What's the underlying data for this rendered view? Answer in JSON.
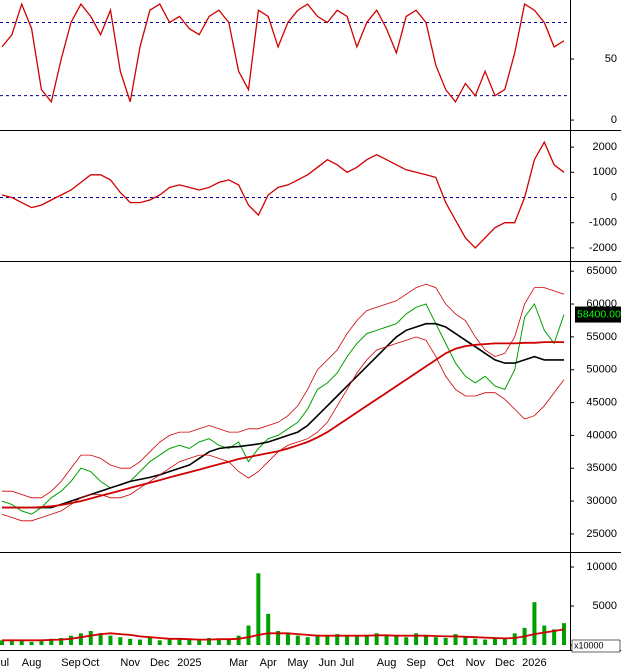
{
  "chart_data": [
    {
      "type": "line",
      "series": [
        {
          "color": "#d00000",
          "values": [
            60,
            70,
            95,
            75,
            25,
            15,
            50,
            80,
            95,
            85,
            70,
            90,
            40,
            15,
            60,
            90,
            95,
            80,
            85,
            75,
            70,
            85,
            90,
            80,
            40,
            25,
            90,
            85,
            60,
            80,
            90,
            95,
            85,
            80,
            90,
            85,
            60,
            80,
            90,
            75,
            55,
            85,
            90,
            80,
            45,
            25,
            15,
            30,
            20,
            40,
            20,
            25,
            55,
            95,
            90,
            80,
            60,
            65
          ]
        }
      ],
      "levels": [
        80,
        20
      ],
      "level_color": "#0000a0",
      "ylim": [
        -6.5,
        98.4
      ],
      "yticks": [
        0,
        50
      ]
    },
    {
      "type": "line",
      "series": [
        {
          "color": "#d00000",
          "values": [
            100,
            0,
            -200,
            -400,
            -300,
            -100,
            100,
            300,
            600,
            900,
            900,
            700,
            200,
            -200,
            -200,
            -100,
            100,
            400,
            500,
            400,
            300,
            400,
            600,
            700,
            500,
            -300,
            -700,
            100,
            400,
            500,
            700,
            900,
            1200,
            1500,
            1300,
            1000,
            1200,
            1500,
            1700,
            1500,
            1300,
            1100,
            1000,
            900,
            800,
            -200,
            -900,
            -1600,
            -2000,
            -1600,
            -1200,
            -1000,
            -1000,
            0,
            1500,
            2200,
            1300,
            1000
          ]
        }
      ],
      "levels": [
        0
      ],
      "level_color": "#0000a0",
      "ylim": [
        -2480,
        2600
      ],
      "yticks": [
        -2000,
        -1000,
        0,
        1000,
        2000
      ]
    },
    {
      "type": "line",
      "series": [
        {
          "color": "#00a000",
          "values": [
            30000,
            29500,
            28500,
            28000,
            29000,
            30500,
            31500,
            33000,
            35000,
            34500,
            33000,
            32000,
            32500,
            33000,
            34500,
            36000,
            37000,
            38000,
            38500,
            38000,
            39000,
            39500,
            38500,
            38000,
            39000,
            36000,
            38000,
            39500,
            40000,
            41000,
            42000,
            44000,
            47000,
            48000,
            49500,
            52000,
            54000,
            55500,
            56000,
            56500,
            57000,
            58500,
            59500,
            60000,
            57000,
            54000,
            51000,
            49000,
            48000,
            49000,
            47500,
            47000,
            50000,
            58000,
            60000,
            56000,
            54000,
            58400
          ]
        },
        {
          "color": "#000000",
          "values": [
            29000,
            29000,
            29000,
            29000,
            29000,
            29000,
            29500,
            30000,
            30500,
            31000,
            31500,
            32000,
            32500,
            33000,
            33300,
            33600,
            34000,
            34500,
            35000,
            35500,
            36500,
            37500,
            38000,
            38200,
            38300,
            38500,
            38700,
            39000,
            39500,
            40000,
            40500,
            41500,
            43000,
            44500,
            46000,
            47500,
            49000,
            50500,
            52000,
            53500,
            55000,
            56000,
            56500,
            57000,
            57000,
            56500,
            55500,
            54500,
            53500,
            52500,
            51500,
            51000,
            51000,
            51500,
            52000,
            51500,
            51500,
            51500
          ]
        },
        {
          "color": "#d00000",
          "values": [
            29000,
            29000,
            29000,
            29000,
            29100,
            29200,
            29400,
            29700,
            30000,
            30400,
            30800,
            31200,
            31600,
            32000,
            32400,
            32800,
            33200,
            33600,
            34000,
            34400,
            34800,
            35200,
            35600,
            36000,
            36400,
            36700,
            37000,
            37300,
            37600,
            38000,
            38500,
            39000,
            39700,
            40500,
            41500,
            42500,
            43500,
            44500,
            45500,
            46500,
            47500,
            48500,
            49500,
            50500,
            51500,
            52500,
            53200,
            53600,
            53800,
            53900,
            54000,
            54000,
            54000,
            54100,
            54100,
            54200,
            54200,
            54200
          ]
        },
        {
          "color": "#d00000",
          "values": [
            31500,
            31500,
            31000,
            30500,
            30500,
            31500,
            33000,
            35000,
            37000,
            37000,
            36500,
            35500,
            35000,
            35000,
            36000,
            37500,
            39000,
            40000,
            40500,
            40500,
            41000,
            41500,
            41000,
            40500,
            40500,
            41000,
            41000,
            41500,
            42000,
            43000,
            44500,
            47000,
            50000,
            51500,
            53000,
            55500,
            57500,
            59000,
            59500,
            60000,
            60500,
            61500,
            62500,
            63000,
            62500,
            60000,
            58500,
            57500,
            55000,
            53000,
            52000,
            52500,
            55000,
            60000,
            62500,
            62500,
            62000,
            61500
          ]
        },
        {
          "color": "#d00000",
          "values": [
            28000,
            27500,
            27000,
            27000,
            27500,
            28000,
            28500,
            29500,
            30500,
            31000,
            31000,
            30500,
            30500,
            31000,
            32000,
            33000,
            34000,
            35000,
            36000,
            36500,
            37000,
            37000,
            36500,
            36000,
            34500,
            33500,
            34500,
            36000,
            37500,
            38500,
            39000,
            39500,
            40500,
            42000,
            44500,
            47000,
            49500,
            51500,
            53000,
            53500,
            54000,
            54500,
            55000,
            54500,
            52000,
            49000,
            47000,
            46000,
            46000,
            46500,
            46500,
            45500,
            44000,
            42500,
            43000,
            44500,
            46500,
            48500
          ]
        }
      ],
      "last_label": "58400.00",
      "ylim": [
        22400,
        66400
      ],
      "yticks": [
        25000,
        30000,
        35000,
        40000,
        45000,
        50000,
        55000,
        60000,
        65000
      ]
    },
    {
      "type": "bar",
      "categories": [
        "Jul",
        null,
        null,
        "Aug",
        null,
        null,
        null,
        "Sep",
        null,
        "Oct",
        null,
        null,
        null,
        "Nov",
        null,
        null,
        "Dec",
        null,
        null,
        "2025",
        null,
        null,
        null,
        null,
        "Mar",
        null,
        null,
        "Apr",
        null,
        null,
        "May",
        null,
        null,
        "Jun",
        null,
        "Jul",
        null,
        null,
        null,
        "Aug",
        null,
        null,
        "Sep",
        null,
        null,
        "Oct",
        null,
        null,
        "Nov",
        null,
        null,
        "Dec",
        null,
        null,
        "2026",
        null,
        null,
        null
      ],
      "values": [
        600,
        500,
        700,
        400,
        500,
        800,
        900,
        1200,
        1500,
        1800,
        1500,
        1200,
        1000,
        800,
        700,
        900,
        600,
        700,
        800,
        700,
        600,
        900,
        800,
        700,
        1200,
        2500,
        9200,
        4000,
        1800,
        1500,
        1200,
        1000,
        1300,
        1100,
        1400,
        1200,
        1100,
        1300,
        1500,
        1200,
        1100,
        1000,
        1500,
        1200,
        1000,
        900,
        1400,
        1000,
        800,
        700,
        900,
        800,
        1500,
        2200,
        5500,
        2500,
        2000,
        2800
      ],
      "color": "#00a000",
      "series": [
        {
          "color": "#d00000",
          "values": [
            600,
            600,
            600,
            600,
            600,
            650,
            700,
            800,
            1000,
            1200,
            1400,
            1500,
            1400,
            1300,
            1100,
            1000,
            900,
            800,
            800,
            750,
            700,
            700,
            750,
            750,
            800,
            1000,
            1300,
            1500,
            1500,
            1500,
            1400,
            1300,
            1200,
            1200,
            1200,
            1200,
            1200,
            1200,
            1250,
            1250,
            1200,
            1200,
            1200,
            1200,
            1150,
            1100,
            1100,
            1050,
            1000,
            950,
            900,
            850,
            900,
            1100,
            1400,
            1600,
            1800,
            2000
          ]
        }
      ],
      "unit_label": "x10000",
      "ylim": [
        -640,
        11800
      ],
      "yticks": [
        0,
        5000,
        10000
      ]
    }
  ]
}
